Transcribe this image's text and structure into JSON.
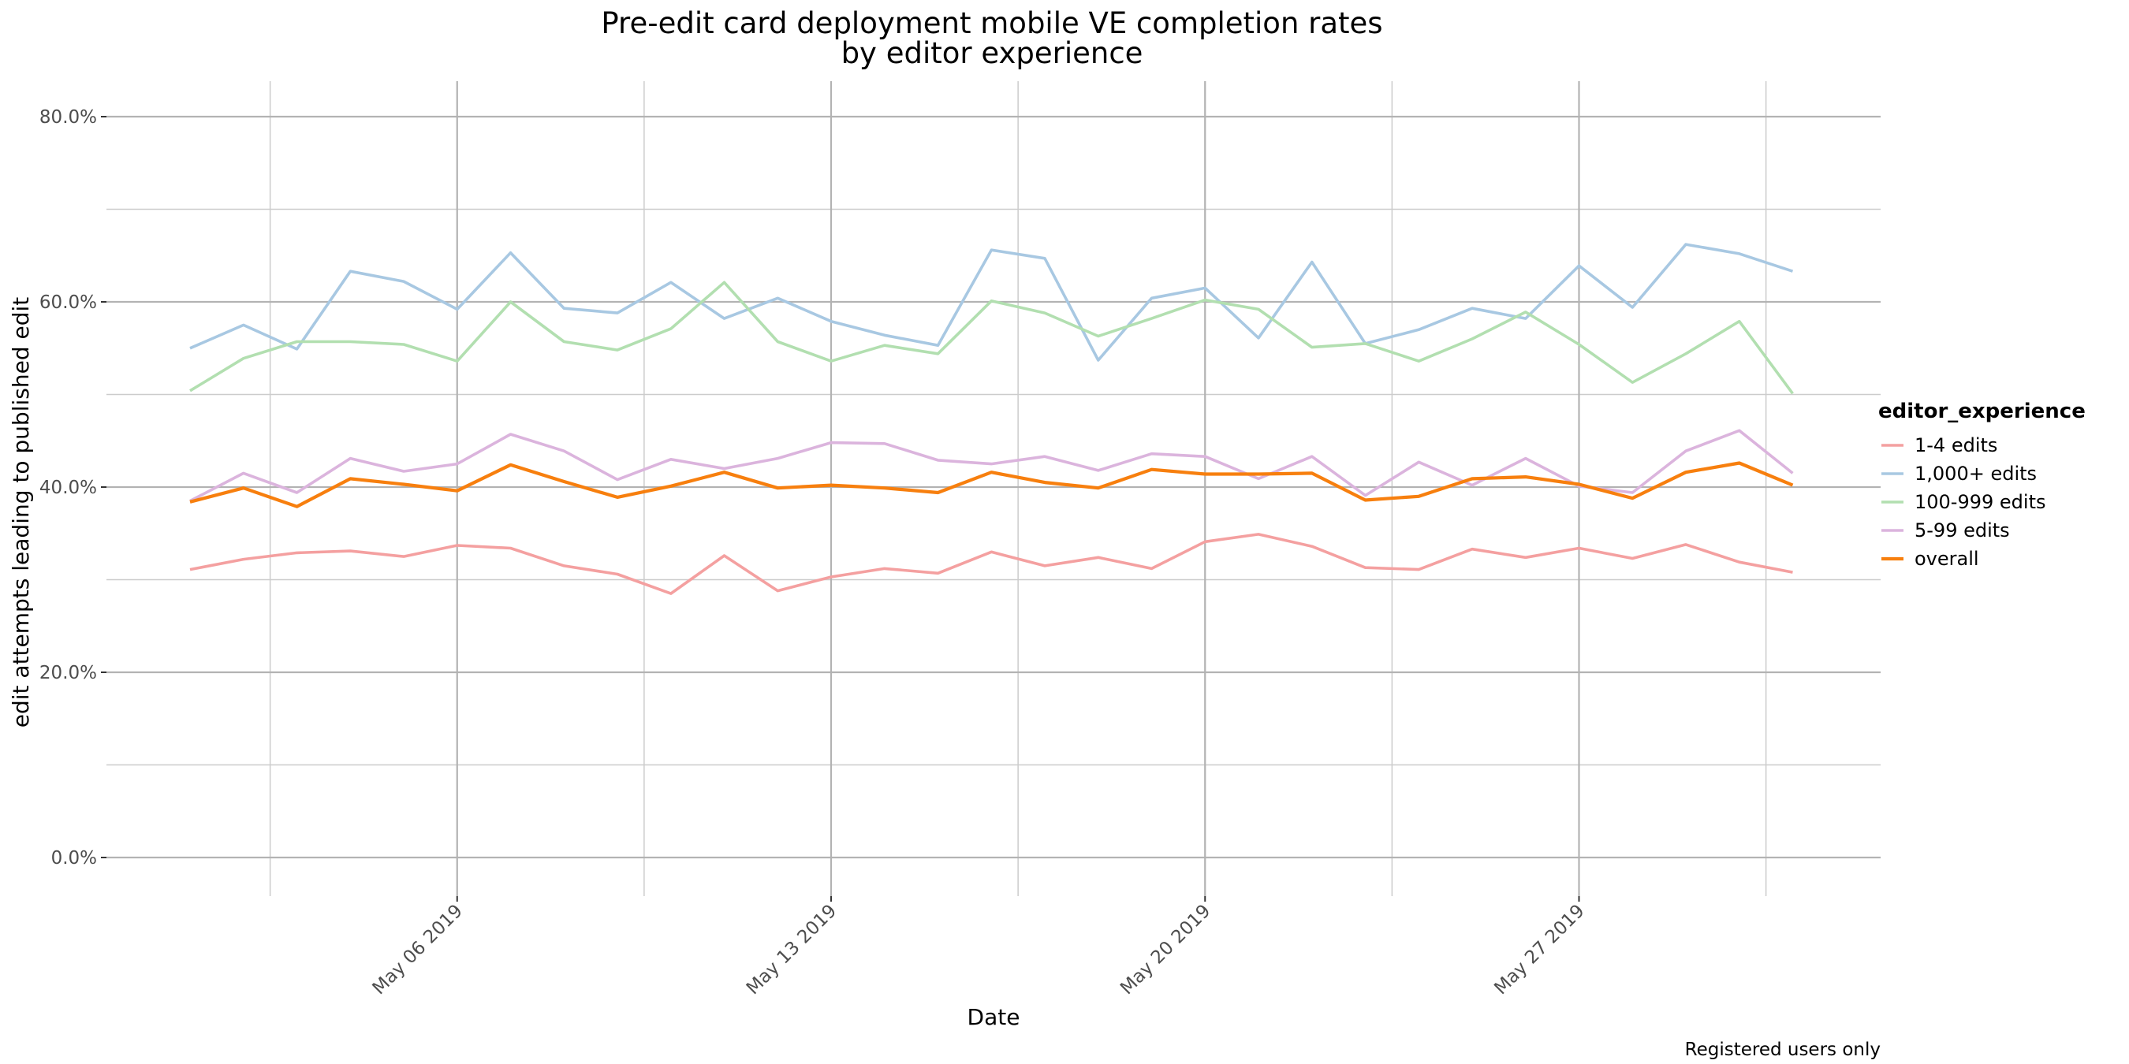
{
  "chart_data": {
    "type": "line",
    "title": "Pre-edit card deployment mobile VE completion rates",
    "subtitle": "by editor experience",
    "xlabel": "Date",
    "ylabel": "edit attempts leading to published edit",
    "caption": "Registered users only",
    "x_ticks": [
      "May 06 2019",
      "May 13 2019",
      "May 20 2019",
      "May 27 2019"
    ],
    "y_ticks": [
      "0.0%",
      "20.0%",
      "40.0%",
      "60.0%",
      "80.0%"
    ],
    "ylim": [
      0,
      80
    ],
    "grid": true,
    "legend": {
      "title": "editor_experience",
      "position": "right"
    },
    "x": [
      "2019-05-01",
      "2019-05-02",
      "2019-05-03",
      "2019-05-04",
      "2019-05-05",
      "2019-05-06",
      "2019-05-07",
      "2019-05-08",
      "2019-05-09",
      "2019-05-10",
      "2019-05-11",
      "2019-05-12",
      "2019-05-13",
      "2019-05-14",
      "2019-05-15",
      "2019-05-16",
      "2019-05-17",
      "2019-05-18",
      "2019-05-19",
      "2019-05-20",
      "2019-05-21",
      "2019-05-22",
      "2019-05-23",
      "2019-05-24",
      "2019-05-25",
      "2019-05-26",
      "2019-05-27",
      "2019-05-28",
      "2019-05-29",
      "2019-05-30",
      "2019-05-31"
    ],
    "series": [
      {
        "name": "1-4 edits",
        "color": "#f4a0a0",
        "values": [
          31.1,
          32.2,
          32.9,
          33.1,
          32.5,
          33.7,
          33.4,
          31.5,
          30.6,
          28.5,
          32.6,
          28.8,
          30.3,
          31.2,
          30.7,
          33.0,
          31.5,
          32.4,
          31.2,
          34.1,
          34.9,
          33.6,
          31.3,
          31.1,
          33.3,
          32.4,
          33.4,
          32.3,
          33.8,
          31.9,
          30.8
        ]
      },
      {
        "name": "1,000+ edits",
        "color": "#a8c8e2",
        "values": [
          55.0,
          57.5,
          54.9,
          63.3,
          62.2,
          59.2,
          65.3,
          59.3,
          58.8,
          62.1,
          58.2,
          60.4,
          57.9,
          56.4,
          55.3,
          65.6,
          64.7,
          53.7,
          60.4,
          61.5,
          56.1,
          64.3,
          55.5,
          57.0,
          59.3,
          58.2,
          63.9,
          59.4,
          66.2,
          65.2,
          63.3
        ]
      },
      {
        "name": "100-999 edits",
        "color": "#b2dfb0",
        "values": [
          50.4,
          53.9,
          55.7,
          55.7,
          55.4,
          53.6,
          60.0,
          55.7,
          54.8,
          57.1,
          62.1,
          55.7,
          53.6,
          55.3,
          54.4,
          60.1,
          58.8,
          56.3,
          58.2,
          60.2,
          59.2,
          55.1,
          55.5,
          53.6,
          56.0,
          58.9,
          55.4,
          51.3,
          54.4,
          57.9,
          50.1
        ]
      },
      {
        "name": "5-99 edits",
        "color": "#dbb4dd",
        "values": [
          38.5,
          41.5,
          39.4,
          43.1,
          41.7,
          42.5,
          45.7,
          43.9,
          40.8,
          43.0,
          42.0,
          43.1,
          44.8,
          44.7,
          42.9,
          42.5,
          43.3,
          41.8,
          43.6,
          43.3,
          40.9,
          43.3,
          39.1,
          42.7,
          40.2,
          43.1,
          40.1,
          39.4,
          43.9,
          46.1,
          41.5
        ]
      },
      {
        "name": "overall",
        "color": "#f77f0e",
        "values": [
          38.4,
          39.9,
          37.9,
          40.9,
          40.3,
          39.6,
          42.4,
          40.6,
          38.9,
          40.1,
          41.6,
          39.9,
          40.2,
          39.9,
          39.4,
          41.6,
          40.5,
          39.9,
          41.9,
          41.4,
          41.4,
          41.5,
          38.6,
          39.0,
          40.9,
          41.1,
          40.3,
          38.8,
          41.6,
          42.6,
          40.2
        ]
      }
    ]
  }
}
